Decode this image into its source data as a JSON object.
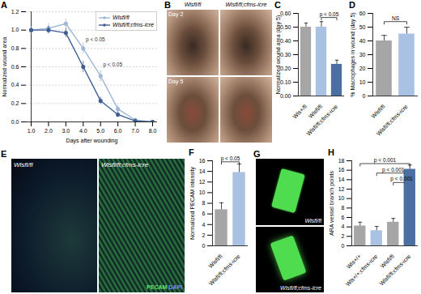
{
  "chart_data": [
    {
      "panel": "A",
      "type": "line",
      "xlabel": "Days after wounding",
      "ylabel": "Normalized wound area",
      "x": [
        1,
        2,
        3,
        4,
        5,
        6,
        7,
        8
      ],
      "xlim": [
        1,
        8
      ],
      "xticks": [
        1,
        2,
        3,
        4,
        5,
        6,
        7,
        8
      ],
      "ylim": [
        0,
        1.2
      ],
      "yticks": [
        0,
        0.2,
        0.4,
        0.6,
        0.8,
        1,
        1.2
      ],
      "grid": true,
      "legend": "top-right",
      "series": [
        {
          "name": "Wlsfl/fl",
          "color": "#9fb6d6",
          "marker": "circle",
          "values": [
            1.0,
            1.02,
            1.07,
            0.8,
            0.5,
            0.14,
            0.02,
            0.0
          ],
          "errors": [
            0.04,
            0.05,
            0.05,
            0.06,
            0.06,
            0.04,
            0.02,
            0.01
          ]
        },
        {
          "name": "Wlsfl/fl;cfms-icre",
          "color": "#3d5f92",
          "marker": "circle",
          "values": [
            1.0,
            1.0,
            0.97,
            0.6,
            0.23,
            0.08,
            0.01,
            0.0
          ],
          "errors": [
            0.04,
            0.04,
            0.05,
            0.06,
            0.04,
            0.03,
            0.01,
            0.01
          ]
        }
      ],
      "annotations": [
        {
          "text": "p < 0.05",
          "x": 4.15,
          "y": 0.9
        },
        {
          "text": "p < 0.05",
          "x": 5.15,
          "y": 0.62
        }
      ]
    },
    {
      "panel": "C",
      "type": "bar",
      "ylabel": "Normalized wound area (day 5)",
      "categories": [
        "Wls+/fl",
        "Wlsfl/fl",
        "Wlsfl/fl;cfms-icre"
      ],
      "values": [
        0.5,
        0.5,
        0.23
      ],
      "errors": [
        0.03,
        0.04,
        0.03
      ],
      "colors": [
        "#a6a6a6",
        "#a9c2e3",
        "#4a6fa0"
      ],
      "ylim": [
        0,
        0.6
      ],
      "yticks": [
        0,
        0.1,
        0.2,
        0.3,
        0.4,
        0.5,
        0.6
      ],
      "annotations": [
        {
          "text": "p < 0.05",
          "between": [
            "Wlsfl/fl",
            "Wlsfl/fl;cfms-icre"
          ],
          "y": 0.57
        }
      ]
    },
    {
      "panel": "D",
      "type": "bar",
      "ylabel": "% Macrophages in wound (day 5)",
      "categories": [
        "Wlsfl/fl",
        "Wlsfl/fl;cfms-icre"
      ],
      "values": [
        40,
        45
      ],
      "errors": [
        4,
        5
      ],
      "colors": [
        "#a6a6a6",
        "#a9c2e3"
      ],
      "ylim": [
        0,
        60
      ],
      "yticks": [
        0,
        10,
        20,
        30,
        40,
        50,
        60
      ],
      "annotations": [
        {
          "text": "NS",
          "between": [
            "Wlsfl/fl",
            "Wlsfl/fl;cfms-icre"
          ],
          "y": 54
        }
      ]
    },
    {
      "panel": "F",
      "type": "bar",
      "ylabel": "Normalized PECAM intensity",
      "categories": [
        "Wlsfl/fl",
        "Wlsfl/fl;cfms-icre"
      ],
      "values": [
        6.8,
        13.8
      ],
      "errors": [
        1.3,
        1.6
      ],
      "colors": [
        "#a6a6a6",
        "#a9c2e3"
      ],
      "ylim": [
        0,
        16
      ],
      "yticks": [
        0,
        2,
        4,
        6,
        8,
        10,
        12,
        14,
        16
      ],
      "annotations": [
        {
          "text": "p < 0.05",
          "between": [
            "Wlsfl/fl",
            "Wlsfl/fl;cfms-icre"
          ],
          "y": 15.8
        }
      ]
    },
    {
      "panel": "H",
      "type": "bar",
      "ylabel": "ARA vessel branch points",
      "categories": [
        "Wls+/+",
        "Wls+/+;cfms-icre",
        "Wlsfl/fl",
        "Wlsfl/fl;cfms-icre"
      ],
      "values": [
        4.2,
        3.2,
        5.0,
        16.2
      ],
      "errors": [
        0.8,
        0.9,
        0.8,
        0.9
      ],
      "colors": [
        "#a6a6a6",
        "#a9c2e3",
        "#a6a6a6",
        "#4a6fa0"
      ],
      "ylim": [
        0,
        18
      ],
      "yticks": [
        0,
        2,
        4,
        6,
        8,
        10,
        12,
        14,
        16,
        18
      ],
      "annotations": [
        {
          "text": "p < 0.001",
          "between": [
            "Wls+/+",
            "Wlsfl/fl;cfms-icre"
          ],
          "y": 17.4
        },
        {
          "text": "p < 0.001",
          "between": [
            "Wls+/+;cfms-icre",
            "Wlsfl/fl;cfms-icre"
          ],
          "y": 15.4
        },
        {
          "text": "p < 0.001",
          "between": [
            "Wlsfl/fl",
            "Wlsfl/fl;cfms-icre"
          ],
          "y": 13.4
        }
      ]
    }
  ],
  "images": [
    {
      "panel": "B",
      "columns": [
        "Wlsfl/fl",
        "Wlsfl/fl;cfms-icre"
      ],
      "rows": [
        "Day 2",
        "Day 5"
      ]
    },
    {
      "panel": "E",
      "columns": [
        "Wlsfl/fl",
        "Wlsfl/fl;cfms-icre"
      ],
      "stain": [
        "PECAM",
        "DAPI"
      ]
    },
    {
      "panel": "G",
      "rows": [
        "Wlsfl/fl",
        "Wlsfl/fl;cfms-icre"
      ]
    }
  ]
}
